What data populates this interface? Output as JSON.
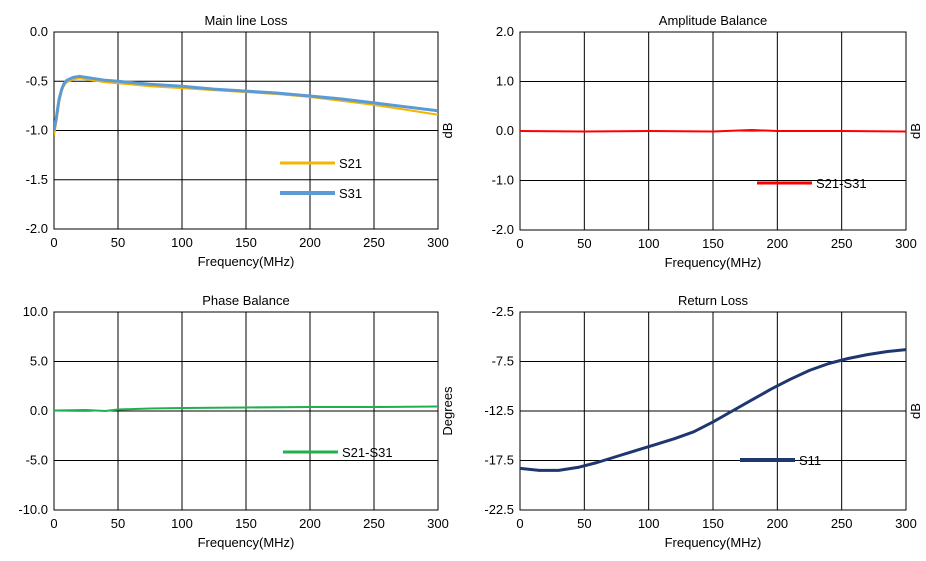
{
  "chart_data": [
    {
      "id": "main-line-loss",
      "type": "line",
      "title": "Main line Loss",
      "xlabel": "Frequency(MHz)",
      "ylabel": "",
      "ylabel_right": "dB",
      "xlim": [
        0,
        300
      ],
      "ylim": [
        -2.0,
        0.0
      ],
      "xticks": [
        0,
        50,
        100,
        150,
        200,
        250,
        300
      ],
      "xtick_labels": [
        "0",
        "50",
        "100",
        "150",
        "200",
        "250",
        "300"
      ],
      "yticks": [
        0.0,
        -0.5,
        -1.0,
        -1.5,
        -2.0
      ],
      "ytick_labels": [
        "0.0",
        "-0.5",
        "-1.0",
        "-1.5",
        "-2.0"
      ],
      "grid": true,
      "legend_position": "bottom-center",
      "series": [
        {
          "name": "S21",
          "color": "#f5b400",
          "line_width": 2,
          "x": [
            0,
            2,
            4,
            6,
            8,
            10,
            15,
            20,
            25,
            30,
            40,
            50,
            75,
            100,
            125,
            150,
            175,
            200,
            225,
            250,
            275,
            300
          ],
          "y": [
            -1.05,
            -0.9,
            -0.72,
            -0.6,
            -0.54,
            -0.51,
            -0.48,
            -0.47,
            -0.48,
            -0.49,
            -0.51,
            -0.52,
            -0.55,
            -0.57,
            -0.59,
            -0.61,
            -0.63,
            -0.66,
            -0.7,
            -0.74,
            -0.79,
            -0.84
          ]
        },
        {
          "name": "S31",
          "color": "#5b9bd5",
          "line_width": 3,
          "x": [
            0,
            2,
            4,
            6,
            8,
            10,
            15,
            20,
            25,
            30,
            40,
            50,
            75,
            100,
            125,
            150,
            175,
            200,
            225,
            250,
            275,
            300
          ],
          "y": [
            -1.0,
            -0.85,
            -0.68,
            -0.58,
            -0.52,
            -0.49,
            -0.46,
            -0.45,
            -0.46,
            -0.47,
            -0.49,
            -0.5,
            -0.53,
            -0.55,
            -0.58,
            -0.6,
            -0.62,
            -0.65,
            -0.68,
            -0.72,
            -0.76,
            -0.8
          ]
        }
      ]
    },
    {
      "id": "amplitude-balance",
      "type": "line",
      "title": "Amplitude Balance",
      "xlabel": "Frequency(MHz)",
      "ylabel": "",
      "ylabel_right": "dB",
      "xlim": [
        0,
        300
      ],
      "ylim": [
        -2.0,
        2.0
      ],
      "xticks": [
        0,
        50,
        100,
        150,
        200,
        250,
        300
      ],
      "xtick_labels": [
        "0",
        "50",
        "100",
        "150",
        "200",
        "250",
        "300"
      ],
      "yticks": [
        2.0,
        1.0,
        0.0,
        -1.0,
        -2.0
      ],
      "ytick_labels": [
        "2.0",
        "1.0",
        "0.0",
        "-1.0",
        "-2.0"
      ],
      "grid": true,
      "legend_position": "bottom-right",
      "series": [
        {
          "name": "S21-S31",
          "color": "#ff0000",
          "line_width": 2,
          "x": [
            0,
            50,
            100,
            150,
            180,
            200,
            250,
            300
          ],
          "y": [
            0.0,
            -0.01,
            0.0,
            -0.01,
            0.02,
            0.0,
            0.0,
            -0.01
          ]
        }
      ]
    },
    {
      "id": "phase-balance",
      "type": "line",
      "title": "Phase Balance",
      "xlabel": "Frequency(MHz)",
      "ylabel": "",
      "ylabel_right": "Degrees",
      "xlim": [
        0,
        300
      ],
      "ylim": [
        -10.0,
        10.0
      ],
      "xticks": [
        0,
        50,
        100,
        150,
        200,
        250,
        300
      ],
      "xtick_labels": [
        "0",
        "50",
        "100",
        "150",
        "200",
        "250",
        "300"
      ],
      "yticks": [
        10.0,
        5.0,
        0.0,
        -5.0,
        -10.0
      ],
      "ytick_labels": [
        "10.0",
        "5.0",
        "0.0",
        "-5.0",
        "-10.0"
      ],
      "grid": true,
      "legend_position": "bottom-right",
      "series": [
        {
          "name": "S21-S31",
          "color": "#1fb050",
          "line_width": 2,
          "x": [
            0,
            25,
            40,
            50,
            75,
            100,
            150,
            200,
            250,
            300
          ],
          "y": [
            0.05,
            0.1,
            0.0,
            0.15,
            0.25,
            0.3,
            0.35,
            0.4,
            0.4,
            0.45
          ]
        }
      ]
    },
    {
      "id": "return-loss",
      "type": "line",
      "title": "Return Loss",
      "xlabel": "Frequency(MHz)",
      "ylabel": "",
      "ylabel_right": "dB",
      "xlim": [
        0,
        300
      ],
      "ylim": [
        -22.5,
        -2.5
      ],
      "xticks": [
        0,
        50,
        100,
        150,
        200,
        250,
        300
      ],
      "xtick_labels": [
        "0",
        "50",
        "100",
        "150",
        "200",
        "250",
        "300"
      ],
      "yticks": [
        -2.5,
        -7.5,
        -12.5,
        -17.5,
        -22.5
      ],
      "ytick_labels": [
        "-2.5",
        "-7.5",
        "-12.5",
        "-17.5",
        "-22.5"
      ],
      "grid": true,
      "legend_position": "bottom-right",
      "series": [
        {
          "name": "S11",
          "color": "#1f3770",
          "line_width": 3,
          "x": [
            0,
            15,
            30,
            45,
            60,
            75,
            90,
            105,
            120,
            135,
            150,
            165,
            180,
            195,
            210,
            225,
            240,
            255,
            270,
            285,
            300
          ],
          "y": [
            -18.3,
            -18.5,
            -18.5,
            -18.2,
            -17.7,
            -17.1,
            -16.5,
            -15.9,
            -15.3,
            -14.6,
            -13.6,
            -12.5,
            -11.4,
            -10.3,
            -9.3,
            -8.4,
            -7.7,
            -7.2,
            -6.8,
            -6.5,
            -6.3
          ]
        }
      ]
    }
  ]
}
